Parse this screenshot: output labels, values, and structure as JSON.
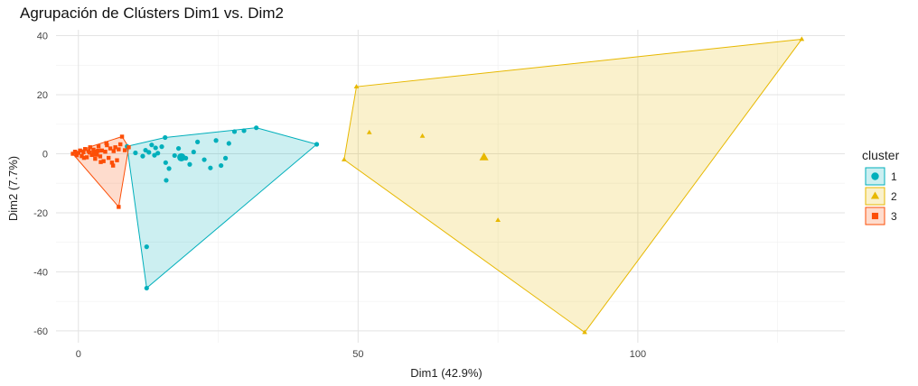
{
  "chart_data": {
    "type": "scatter",
    "title": "Agrupación de Clústers Dim1 vs. Dim2",
    "xlabel": "Dim1 (42.9%)",
    "ylabel": "Dim2 (7.7%)",
    "xlim": [
      -4,
      137
    ],
    "ylim": [
      -64,
      42
    ],
    "xticks": [
      0,
      50,
      100
    ],
    "yticks": [
      40,
      20,
      0,
      -20,
      -40,
      -60
    ],
    "grid": true,
    "legend": {
      "title": "cluster",
      "position": "right",
      "entries": [
        "1",
        "2",
        "3"
      ]
    },
    "series": [
      {
        "name": "1",
        "color": "#00AFBB",
        "marker": "circle",
        "hull": [
          [
            8.7,
            2.5
          ],
          [
            12.2,
            -45.5
          ],
          [
            42.6,
            3.2
          ],
          [
            31.8,
            8.8
          ],
          [
            15.5,
            5.5
          ]
        ],
        "center": [
          18.4,
          -1.2
        ],
        "points": [
          [
            8.7,
            2.5
          ],
          [
            10.2,
            0.3
          ],
          [
            11.5,
            -0.8
          ],
          [
            12.0,
            1.2
          ],
          [
            12.6,
            0.5
          ],
          [
            13.1,
            3.0
          ],
          [
            13.6,
            -0.5
          ],
          [
            14.2,
            0.2
          ],
          [
            14.9,
            2.4
          ],
          [
            15.6,
            -3.0
          ],
          [
            16.2,
            -5.0
          ],
          [
            15.7,
            -9.0
          ],
          [
            17.2,
            -0.6
          ],
          [
            17.9,
            1.8
          ],
          [
            19.2,
            -1.5
          ],
          [
            19.9,
            -3.6
          ],
          [
            20.6,
            0.6
          ],
          [
            21.3,
            4.0
          ],
          [
            22.5,
            -2.0
          ],
          [
            23.6,
            -4.8
          ],
          [
            24.6,
            4.5
          ],
          [
            25.5,
            -4.0
          ],
          [
            26.3,
            -1.5
          ],
          [
            26.9,
            3.5
          ],
          [
            27.9,
            7.5
          ],
          [
            29.6,
            7.8
          ],
          [
            31.8,
            8.8
          ],
          [
            42.6,
            3.2
          ],
          [
            12.2,
            -31.5
          ],
          [
            12.2,
            -45.5
          ],
          [
            15.5,
            5.5
          ],
          [
            13.8,
            2.0
          ]
        ]
      },
      {
        "name": "2",
        "color": "#E7B800",
        "marker": "triangle",
        "hull": [
          [
            47.5,
            -2.0
          ],
          [
            90.5,
            -60.5
          ],
          [
            129.3,
            38.8
          ],
          [
            49.7,
            22.7
          ]
        ],
        "center": [
          72.5,
          -1.2
        ],
        "points": [
          [
            49.7,
            22.7
          ],
          [
            47.5,
            -2.0
          ],
          [
            52.0,
            7.2
          ],
          [
            61.5,
            6.0
          ],
          [
            75.0,
            -22.5
          ],
          [
            90.5,
            -60.5
          ],
          [
            129.3,
            38.8
          ]
        ]
      },
      {
        "name": "3",
        "color": "#FC4E07",
        "marker": "square",
        "hull": [
          [
            -1.0,
            0.0
          ],
          [
            7.2,
            -18.0
          ],
          [
            9.0,
            2.2
          ],
          [
            7.8,
            5.8
          ],
          [
            2.5,
            2.6
          ]
        ],
        "center": [
          3.0,
          0.2
        ],
        "points": [
          [
            -1.0,
            0.0
          ],
          [
            -0.6,
            0.7
          ],
          [
            -0.3,
            -0.5
          ],
          [
            0.0,
            0.3
          ],
          [
            0.3,
            1.1
          ],
          [
            0.6,
            -0.8
          ],
          [
            0.9,
            0.5
          ],
          [
            1.2,
            1.6
          ],
          [
            1.5,
            -1.2
          ],
          [
            1.8,
            0.9
          ],
          [
            2.1,
            2.2
          ],
          [
            2.4,
            -0.4
          ],
          [
            2.7,
            1.4
          ],
          [
            3.0,
            -1.7
          ],
          [
            3.3,
            0.2
          ],
          [
            3.6,
            2.5
          ],
          [
            3.9,
            -0.9
          ],
          [
            4.2,
            1.1
          ],
          [
            4.5,
            -2.5
          ],
          [
            4.8,
            0.7
          ],
          [
            5.1,
            2.9
          ],
          [
            5.4,
            -1.4
          ],
          [
            5.7,
            1.8
          ],
          [
            6.0,
            -3.0
          ],
          [
            6.3,
            0.9
          ],
          [
            6.6,
            2.2
          ],
          [
            6.9,
            -2.2
          ],
          [
            7.2,
            1.5
          ],
          [
            7.5,
            3.2
          ],
          [
            7.8,
            5.8
          ],
          [
            8.3,
            1.2
          ],
          [
            9.0,
            2.2
          ],
          [
            7.2,
            -18.0
          ],
          [
            1.0,
            -1.4
          ],
          [
            2.0,
            0.4
          ],
          [
            3.5,
            1.0
          ],
          [
            4.0,
            -2.8
          ],
          [
            5.0,
            3.6
          ],
          [
            6.2,
            -4.0
          ]
        ]
      }
    ]
  }
}
